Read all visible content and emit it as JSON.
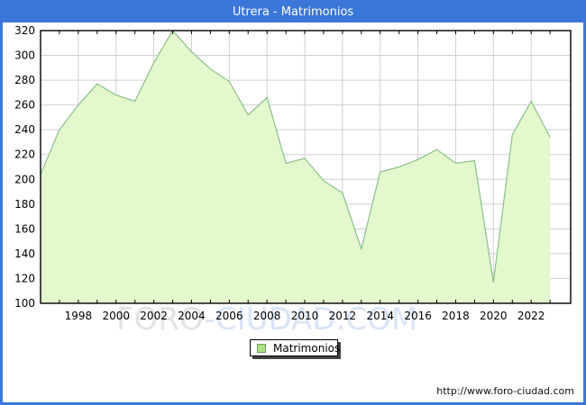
{
  "legend": {
    "label": "Matrimonios"
  },
  "footer": {
    "url": "http://www.foro-ciudad.com"
  },
  "watermark": {
    "part1": "FORO",
    "part2": "-CIUDAD.COM"
  },
  "chart_data": {
    "type": "area",
    "title": "Utrera - Matrimonios",
    "x": [
      1996,
      1997,
      1998,
      1999,
      2000,
      2001,
      2002,
      2003,
      2004,
      2005,
      2006,
      2007,
      2008,
      2009,
      2010,
      2011,
      2012,
      2013,
      2014,
      2015,
      2016,
      2017,
      2018,
      2019,
      2020,
      2021,
      2022,
      2023
    ],
    "values": [
      204,
      240,
      260,
      277,
      268,
      263,
      294,
      320,
      303,
      289,
      279,
      252,
      266,
      213,
      217,
      199,
      189,
      144,
      206,
      210,
      216,
      224,
      213,
      215,
      117,
      236,
      263,
      234
    ],
    "xlabel": "",
    "ylabel": "",
    "ylim": [
      100,
      320
    ],
    "yticks": [
      100,
      120,
      140,
      160,
      180,
      200,
      220,
      240,
      260,
      280,
      300,
      320
    ],
    "xtick_labels": [
      1998,
      2000,
      2002,
      2004,
      2006,
      2008,
      2010,
      2012,
      2014,
      2016,
      2018,
      2020,
      2022
    ],
    "grid": true,
    "legend_entries": [
      "Matrimonios"
    ],
    "legend_position": "bottom-center",
    "colors": {
      "frame_border": "#3b76d9",
      "titlebar_bg": "#3b76d9",
      "titlebar_text": "#ffffff",
      "area_fill": "#e4f8ce",
      "line": "#8abf8a",
      "grid": "#cfcfcf",
      "axis": "#000000",
      "legend_swatch": "#ade283",
      "legend_swatch_border": "#6aa15a",
      "watermark_gray": "#e2e2e2",
      "watermark_blue": "#d9e4f6"
    }
  }
}
